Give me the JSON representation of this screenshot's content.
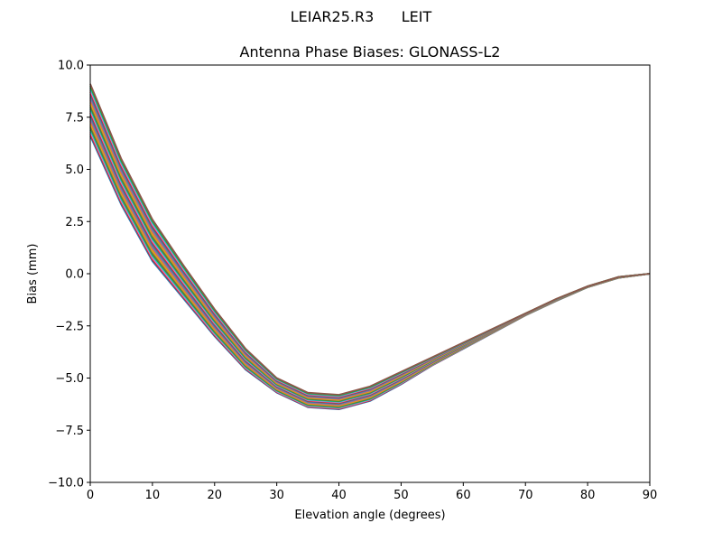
{
  "suptitle": "LEIAR25.R3      LEIT",
  "chart_data": {
    "type": "line",
    "title": "Antenna Phase Biases: GLONASS-L2",
    "xlabel": "Elevation angle (degrees)",
    "ylabel": "Bias (mm)",
    "xlim": [
      0,
      90
    ],
    "ylim": [
      -10,
      10
    ],
    "xticks": [
      0,
      10,
      20,
      30,
      40,
      50,
      60,
      70,
      80,
      90
    ],
    "yticks": [
      -10.0,
      -7.5,
      -5.0,
      -2.5,
      0.0,
      2.5,
      5.0,
      7.5,
      10.0
    ],
    "ytick_labels": [
      "−10.0",
      "−7.5",
      "−5.0",
      "−2.5",
      "0.0",
      "2.5",
      "5.0",
      "7.5",
      "10.0"
    ],
    "grid": false,
    "legend": "none",
    "series_note": "many overlapping azimuth curves; envelope shown",
    "x": [
      0,
      5,
      10,
      15,
      20,
      25,
      30,
      35,
      40,
      45,
      50,
      55,
      60,
      65,
      70,
      75,
      80,
      85,
      90
    ],
    "series_upper": [
      9.1,
      5.5,
      2.6,
      0.4,
      -1.7,
      -3.6,
      -5.0,
      -5.7,
      -5.8,
      -5.4,
      -4.7,
      -4.0,
      -3.3,
      -2.6,
      -1.9,
      -1.2,
      -0.6,
      -0.15,
      0.0
    ],
    "series_lower": [
      6.6,
      3.3,
      0.6,
      -1.2,
      -3.0,
      -4.6,
      -5.7,
      -6.4,
      -6.5,
      -6.1,
      -5.3,
      -4.4,
      -3.6,
      -2.8,
      -2.0,
      -1.3,
      -0.65,
      -0.2,
      0.0
    ],
    "colors": [
      "#1f77b4",
      "#ff7f0e",
      "#2ca02c",
      "#d62728",
      "#9467bd",
      "#8c564b",
      "#e377c2",
      "#7f7f7f",
      "#bcbd22",
      "#17becf"
    ]
  }
}
